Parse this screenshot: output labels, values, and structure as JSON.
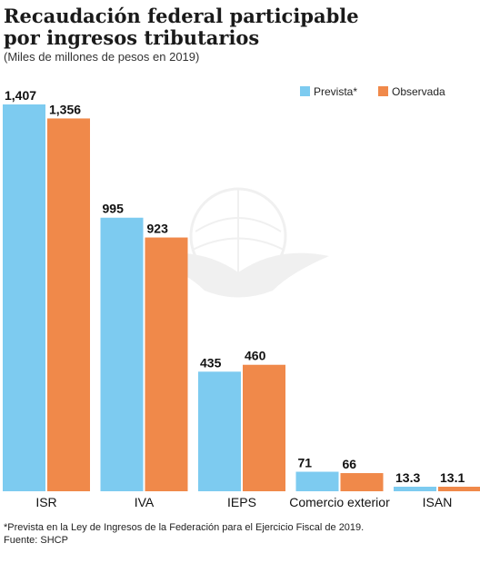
{
  "title_line1": "Recaudación federal participable",
  "title_line2": "por ingresos tributarios",
  "subtitle": "(Miles de millones de pesos en 2019)",
  "footnote": "*Prevista en la Ley de Ingresos de la Federación para el Ejercicio Fiscal de 2019.",
  "source": "Fuente: SHCP",
  "colors": {
    "prevista": "#7dcbf0",
    "observada": "#f0894a"
  },
  "chart_data": {
    "type": "bar",
    "categories": [
      "ISR",
      "IVA",
      "IEPS",
      "Comercio exterior",
      "ISAN"
    ],
    "series": [
      {
        "name": "Prevista*",
        "values": [
          1407,
          995,
          435,
          71,
          13.3
        ],
        "labels": [
          "1,407",
          "995",
          "435",
          "71",
          "13.3"
        ]
      },
      {
        "name": "Observada",
        "values": [
          1356,
          923,
          460,
          66,
          13.1
        ],
        "labels": [
          "1,356",
          "923",
          "460",
          "66",
          "13.1"
        ]
      }
    ],
    "ylim": [
      0,
      1407
    ],
    "grid": false,
    "legend": "top-right"
  }
}
